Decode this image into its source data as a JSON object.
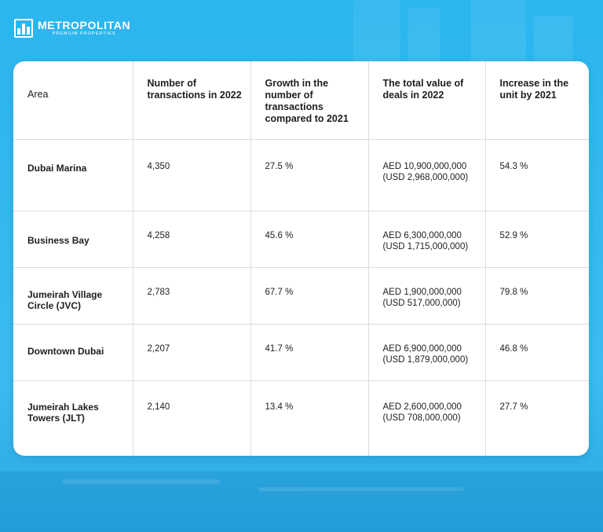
{
  "brand": {
    "name": "METROPOLITAN",
    "tagline": "PREMIUM PROPERTIES"
  },
  "table": {
    "headers": [
      "Area",
      "Number of transactions in 2022",
      "Growth in the number of transactions compared to 2021",
      "The total value of deals in 2022",
      "Increase in the unit by 2021"
    ],
    "rows": [
      {
        "area": "Dubai Marina",
        "transactions": "4,350",
        "growth": "27.5 %",
        "value_aed": "AED 10,900,000,000",
        "value_usd": "(USD 2,968,000,000)",
        "increase": "54.3 %"
      },
      {
        "area": "Business Bay",
        "transactions": "4,258",
        "growth": "45.6 %",
        "value_aed": "AED 6,300,000,000",
        "value_usd": "(USD 1,715,000,000)",
        "increase": "52.9 %"
      },
      {
        "area": "Jumeirah Village Circle (JVC)",
        "transactions": "2,783",
        "growth": "67.7 %",
        "value_aed": "AED 1,900,000,000",
        "value_usd": "(USD 517,000,000)",
        "increase": "79.8 %"
      },
      {
        "area": "Downtown Dubai",
        "transactions": "2,207",
        "growth": "41.7 %",
        "value_aed": "AED 6,900,000,000",
        "value_usd": "(USD 1,879,000,000)",
        "increase": "46.8 %"
      },
      {
        "area": "Jumeirah Lakes Towers (JLT)",
        "transactions": "2,140",
        "growth": "13.4 %",
        "value_aed": "AED 2,600,000,000",
        "value_usd": "(USD 708,000,000)",
        "increase": "27.7 %"
      }
    ]
  },
  "colors": {
    "background": "#35b9ef",
    "card": "#ffffff",
    "text": "#1e1e1e",
    "grid": "#dcdcdc"
  }
}
